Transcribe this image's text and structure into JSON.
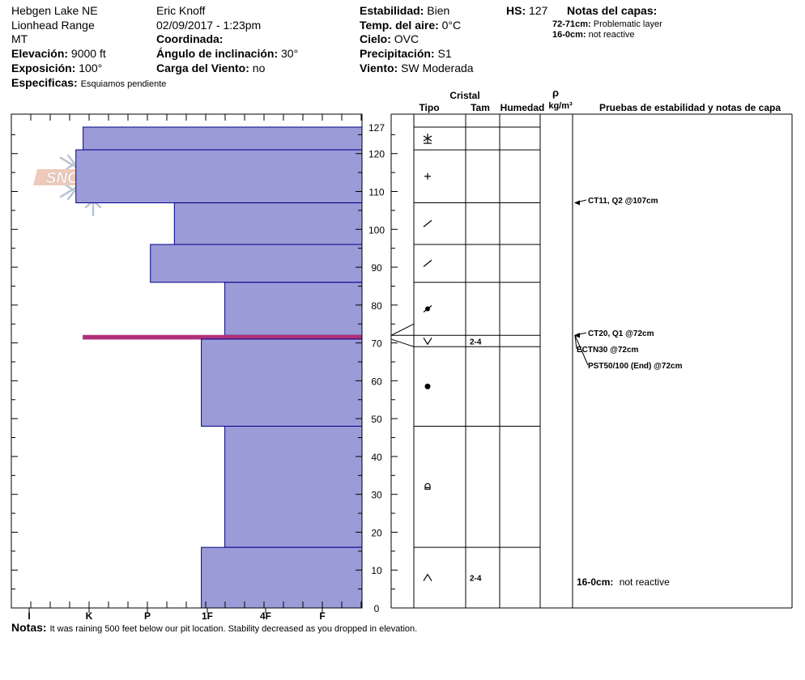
{
  "header": {
    "location": "Hebgen Lake NE",
    "range": "Lionhead Range",
    "state": "MT",
    "elevation_label": "Elevación:",
    "elevation_value": "9000 ft",
    "aspect_label": "Exposición:",
    "aspect_value": "100°",
    "specifics_label": "Especificas:",
    "specifics_value": "Esquiamos pendiente",
    "observer": "Eric Knoff",
    "datetime": "02/09/2017 - 1:23pm",
    "coord_label": "Coordinada:",
    "incline_label": "Ángulo de inclinación:",
    "incline_value": "30°",
    "wind_load_label": "Carga del Viento:",
    "wind_load_value": "no",
    "stability_label": "Estabilidad:",
    "stability_value": "Bien",
    "air_temp_label": "Temp. del aire:",
    "air_temp_value": "0°C",
    "sky_label": "Cielo:",
    "sky_value": "OVC",
    "precip_label": "Precipitación:",
    "precip_value": "S1",
    "wind_label": "Viento:",
    "wind_value": "SW Moderada",
    "hs_label": "HS:",
    "hs_value": "127",
    "layer_notes_title": "Notas del capas:",
    "layer_notes": [
      {
        "range": "72-71cm:",
        "text": "Problematic layer"
      },
      {
        "range": "16-0cm:",
        "text": "not reactive"
      }
    ]
  },
  "logo": {
    "text": "SNOW PILOT"
  },
  "columns": {
    "cristal": "Cristal",
    "tipo": "Tipo",
    "tam": "Tam",
    "humedad": "Humedad",
    "rho": "ρ",
    "density_unit": "kg/m³",
    "stability_notes": "Pruebas de estabilidad y notas de capa"
  },
  "chart_data": {
    "type": "bar",
    "orientation": "horizontal",
    "ylim": [
      0,
      127
    ],
    "y_ticks": [
      0,
      10,
      20,
      30,
      40,
      50,
      60,
      70,
      80,
      90,
      100,
      110,
      120,
      127
    ],
    "x_ticks": [
      "I",
      "K",
      "P",
      "1F",
      "4F",
      "F"
    ],
    "bar_color": "#9b9bd7",
    "bar_edge": "#00008b",
    "weak_layer_color": "#b0307a",
    "layers": [
      {
        "top": 127,
        "bottom": 121,
        "hardness": 0.9
      },
      {
        "top": 121,
        "bottom": 107,
        "hardness": 0.78
      },
      {
        "top": 107,
        "bottom": 96,
        "hardness": 2.45
      },
      {
        "top": 96,
        "bottom": 86,
        "hardness": 2.05
      },
      {
        "top": 86,
        "bottom": 72,
        "hardness": 3.3
      },
      {
        "top": 72,
        "bottom": 71,
        "hardness": 0.9,
        "weak": true
      },
      {
        "top": 71,
        "bottom": 48,
        "hardness": 2.9
      },
      {
        "top": 48,
        "bottom": 16,
        "hardness": 3.3
      },
      {
        "top": 16,
        "bottom": 0,
        "hardness": 2.9
      }
    ],
    "crystal_table": [
      {
        "top": 127,
        "bottom": 121,
        "symbol": "stellar",
        "size": ""
      },
      {
        "top": 121,
        "bottom": 107,
        "symbol": "plus",
        "size": ""
      },
      {
        "top": 107,
        "bottom": 96,
        "symbol": "slash",
        "size": ""
      },
      {
        "top": 96,
        "bottom": 86,
        "symbol": "slash",
        "size": ""
      },
      {
        "top": 86,
        "bottom": 72,
        "symbol": "dot-slash",
        "size": ""
      },
      {
        "top": 72,
        "bottom": 69,
        "symbol": "chevron-down",
        "size": "2-4"
      },
      {
        "top": 69,
        "bottom": 48,
        "symbol": "dot",
        "size": ""
      },
      {
        "top": 48,
        "bottom": 16,
        "symbol": "faceted",
        "size": ""
      },
      {
        "top": 16,
        "bottom": 0,
        "symbol": "chevron-up",
        "size": "2-4"
      }
    ],
    "stability_tests": [
      {
        "label": "CT11, Q2 @107cm",
        "depth": 107
      },
      {
        "label": "CT20, Q1 @72cm",
        "depth": 72
      },
      {
        "label": "ECTN30 @72cm",
        "depth": 72
      },
      {
        "label": "PST50/100 (End) @72cm",
        "depth": 72
      }
    ],
    "layer_note": {
      "range": "16-0cm:",
      "text": "not reactive"
    }
  },
  "footer": {
    "notes_label": "Notas:",
    "notes_text": "It was raining 500 feet below our pit location. Stability decreased as you dropped in elevation."
  }
}
